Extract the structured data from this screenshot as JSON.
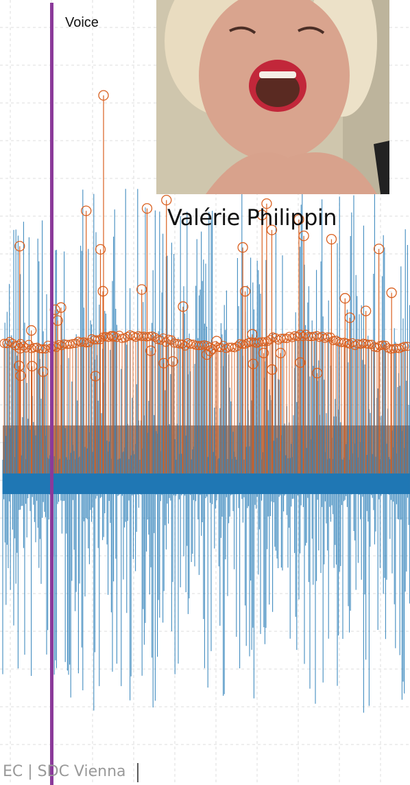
{
  "label": "Voice",
  "caption": "Valérie Philippin",
  "footer": "EC | SDC Vienna"
}
